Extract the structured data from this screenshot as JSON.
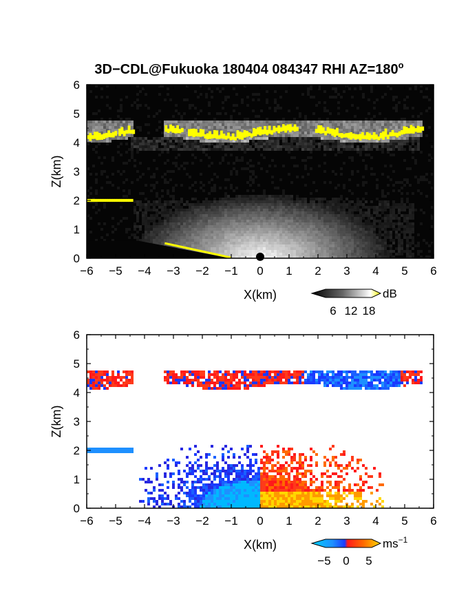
{
  "figure_title": "3D−CDL@Fukuoka 180404 084347 RHI AZ=180",
  "title_superscript": "o",
  "chart_data": [
    {
      "type": "heatmap",
      "panel": "backscatter",
      "title": "3D−CDL@Fukuoka 180404 084347 RHI AZ=180°",
      "xlabel": "X(km)",
      "ylabel": "Z(km)",
      "xlim": [
        -6,
        6
      ],
      "ylim": [
        0,
        6
      ],
      "xticks": [
        "−6",
        "−5",
        "−4",
        "−3",
        "−2",
        "−1",
        "0",
        "1",
        "2",
        "3",
        "4",
        "5",
        "6"
      ],
      "yticks": [
        "0",
        "1",
        "2",
        "3",
        "4",
        "5",
        "6"
      ],
      "grid": false,
      "background_color": "#050505",
      "colorbar": {
        "unit": "dB",
        "ticks": [
          "6",
          "12",
          "18"
        ],
        "range": [
          0,
          21
        ],
        "colors": [
          "#000000",
          "#555555",
          "#aaaaaa",
          "#ffffff",
          "#ffff00"
        ]
      },
      "features": [
        {
          "name": "cloud layer",
          "x_range": [
            -6,
            5.6
          ],
          "z_base": 4.1,
          "z_top": 4.8,
          "high_echo_color": "#ffff00"
        },
        {
          "name": "low cloud",
          "x_range": [
            -6,
            -4.4
          ],
          "z": 2.0,
          "high_echo_color": "#ffff00"
        },
        {
          "name": "boundary layer echo",
          "x_range": [
            -4.4,
            5.3
          ],
          "z_top": 2.2
        },
        {
          "name": "ground clutter",
          "x_range": [
            -3.3,
            -1
          ],
          "z_range": [
            0.5,
            0
          ],
          "color": "#ffff00"
        }
      ]
    },
    {
      "type": "heatmap",
      "panel": "doppler_velocity",
      "xlabel": "X(km)",
      "ylabel": "Z(km)",
      "xlim": [
        -6,
        6
      ],
      "ylim": [
        0,
        6
      ],
      "xticks": [
        "−6",
        "−5",
        "−4",
        "−3",
        "−2",
        "−1",
        "0",
        "1",
        "2",
        "3",
        "4",
        "5",
        "6"
      ],
      "yticks": [
        "0",
        "1",
        "2",
        "3",
        "4",
        "5",
        "6"
      ],
      "grid": false,
      "background_color": "#ffffff",
      "colorbar": {
        "unit": "ms",
        "unit_exponent": "−1",
        "ticks": [
          "−5",
          "0",
          "5"
        ],
        "range": [
          -7,
          7
        ],
        "colors": [
          "#00d0ff",
          "#1e90ff",
          "#1a3aff",
          "#ff1a1a",
          "#ff6a00",
          "#ffd700"
        ]
      },
      "features": [
        {
          "name": "cloud layer",
          "x_range": [
            -6,
            5.6
          ],
          "z_base": 4.1,
          "z_top": 4.8
        },
        {
          "name": "low cloud",
          "x_range": [
            -6,
            -4.4
          ],
          "z": 2.0,
          "velocity_ms": -2
        },
        {
          "name": "boundary layer negative",
          "x_range": [
            -4,
            0
          ],
          "z_top": 2.2,
          "velocity_ms": -4
        },
        {
          "name": "boundary layer positive",
          "x_range": [
            0,
            4.2
          ],
          "z_top": 2.2,
          "velocity_ms": 3
        }
      ]
    }
  ]
}
